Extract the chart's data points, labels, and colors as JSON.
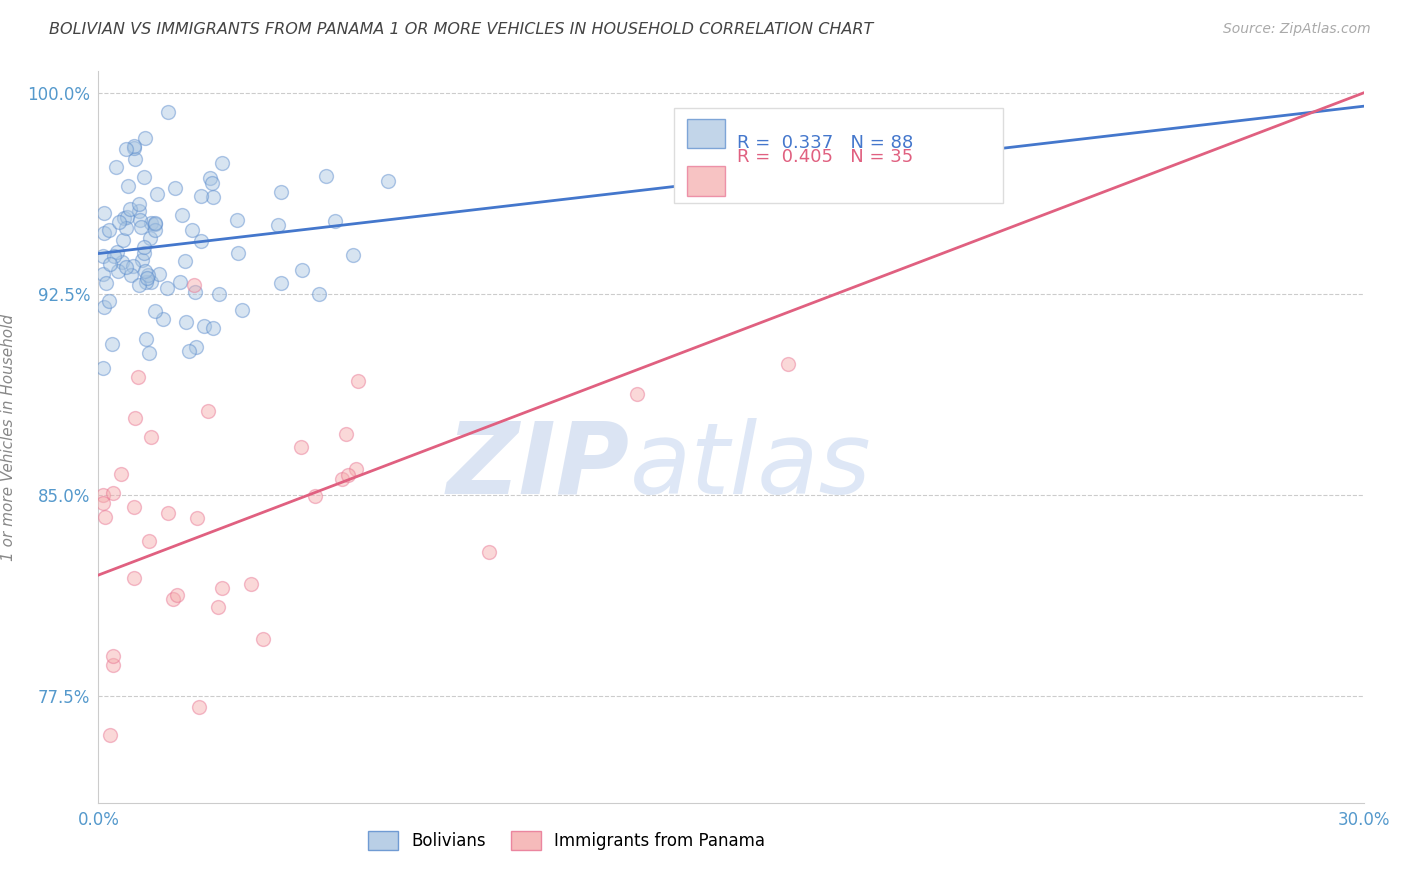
{
  "title": "BOLIVIAN VS IMMIGRANTS FROM PANAMA 1 OR MORE VEHICLES IN HOUSEHOLD CORRELATION CHART",
  "source": "Source: ZipAtlas.com",
  "ylabel": "1 or more Vehicles in Household",
  "xlim": [
    0.0,
    0.3
  ],
  "ylim": [
    0.735,
    1.008
  ],
  "xticks": [
    0.0,
    0.05,
    0.1,
    0.15,
    0.2,
    0.25,
    0.3
  ],
  "xticklabels": [
    "0.0%",
    "",
    "",
    "",
    "",
    "",
    "30.0%"
  ],
  "yticks": [
    0.775,
    0.85,
    0.925,
    1.0
  ],
  "yticklabels": [
    "77.5%",
    "85.0%",
    "92.5%",
    "100.0%"
  ],
  "blue_R": 0.337,
  "blue_N": 88,
  "pink_R": 0.405,
  "pink_N": 35,
  "blue_fill": "#A8C4E0",
  "pink_fill": "#F4AAAA",
  "blue_edge": "#5588CC",
  "pink_edge": "#E87090",
  "blue_line_color": "#4477CC",
  "pink_line_color": "#E06080",
  "legend_label_blue": "Bolivians",
  "legend_label_pink": "Immigrants from Panama",
  "blue_line_y0": 0.94,
  "blue_line_y1": 0.995,
  "pink_line_y0": 0.82,
  "pink_line_y1": 1.0,
  "watermark_zip": "ZIP",
  "watermark_atlas": "atlas",
  "marker_size": 100,
  "alpha_fill": 0.45,
  "background_color": "#FFFFFF",
  "grid_color": "#CCCCCC",
  "title_color": "#444444",
  "axis_tick_color": "#5599CC",
  "ylabel_color": "#888888"
}
